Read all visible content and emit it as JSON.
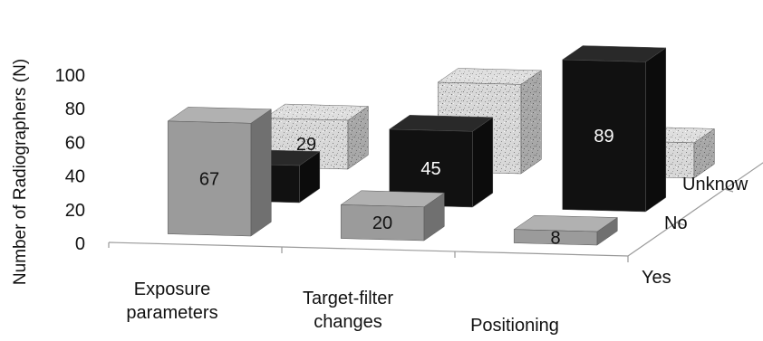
{
  "chart_data": {
    "type": "bar",
    "subtype": "3d-column",
    "ylabel": "Number of Radiographers (N)",
    "ylim": [
      0,
      100
    ],
    "yticks": [
      0,
      20,
      40,
      60,
      80,
      100
    ],
    "categories": [
      "Exposure parameters",
      "Target-filter changes",
      "Positioning"
    ],
    "category_lines": [
      [
        "Exposure",
        "parameters"
      ],
      [
        "Target-filter",
        "changes"
      ],
      [
        "Positioning"
      ]
    ],
    "depth_labels": [
      "Yes",
      "No",
      "Unknow"
    ],
    "series": [
      {
        "name": "Yes",
        "values": [
          67,
          20,
          8
        ],
        "color": "#9b9b9b",
        "pattern": "solid"
      },
      {
        "name": "No",
        "values": [
          22,
          45,
          89
        ],
        "color": "#111111",
        "pattern": "solid"
      },
      {
        "name": "Unknow",
        "values": [
          29,
          53,
          21
        ],
        "color": "#d6d6d6",
        "pattern": "speckle"
      }
    ],
    "legend": "none",
    "grid": false
  }
}
